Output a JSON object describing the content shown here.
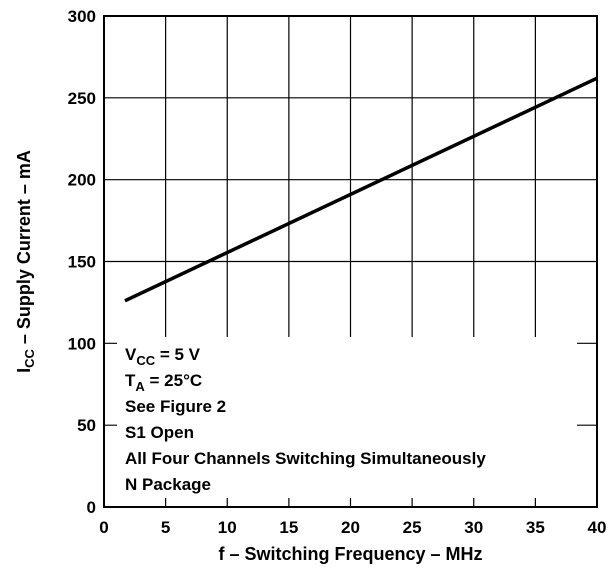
{
  "chart_data": {
    "type": "line",
    "xlabel": "f – Switching Frequency – MHz",
    "ylabel": "I",
    "ylabel_sub": "CC",
    "ylabel_rest": " – Supply Current – mA",
    "xlim": [
      0,
      40
    ],
    "ylim": [
      0,
      300
    ],
    "x_ticks": [
      "0",
      "5",
      "10",
      "15",
      "20",
      "25",
      "30",
      "35",
      "40"
    ],
    "y_ticks": [
      "0",
      "50",
      "100",
      "150",
      "200",
      "250",
      "300"
    ],
    "grid": true,
    "series": [
      {
        "x": [
          1.7,
          40
        ],
        "y": [
          126,
          262
        ],
        "color": "#000000"
      }
    ],
    "conditions": {
      "vcc": {
        "main": "V",
        "sub": "CC",
        "rest": " = 5 V"
      },
      "ta": {
        "main": "T",
        "sub": "A",
        "rest": " = 25°C"
      },
      "figure": "See Figure 2",
      "s1": "S1 Open",
      "channels": "All Four Channels Switching Simultaneously",
      "package": "N Package"
    }
  }
}
